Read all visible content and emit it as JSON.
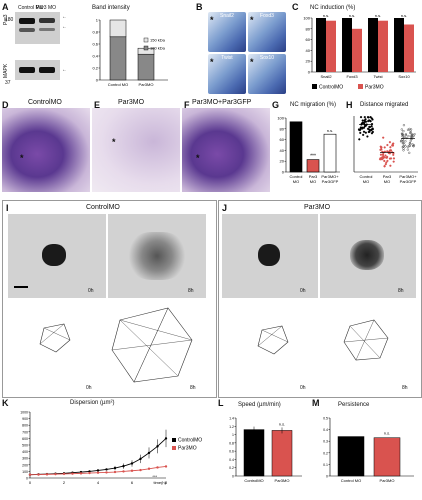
{
  "panels": {
    "A": {
      "label": "A",
      "lane_labels": [
        "Control MO",
        "Par3 MO"
      ],
      "row_labels": [
        "Par3",
        "MAPK"
      ],
      "mw_marks": [
        "180",
        "37"
      ],
      "chart_title": "Band intensity",
      "legend": [
        "150 kDa",
        "180 kDa"
      ],
      "y_ticks": [
        "0",
        "0.2",
        "0.4",
        "0.6",
        "0.8",
        "1"
      ],
      "categories": [
        "Control MO",
        "Par3MO"
      ]
    },
    "B": {
      "label": "B",
      "markers": [
        "Snail2",
        "Foxd3",
        "Twist",
        "Sox10"
      ]
    },
    "C": {
      "label": "C",
      "title": "NC induction (%)",
      "annotations": [
        "n.s.",
        "n.s.",
        "n.s.",
        "n.s."
      ],
      "categories": [
        "Snail2",
        "Foxd3",
        "Twist",
        "Sox10"
      ],
      "legend": [
        "ControlMO",
        "Par3MO"
      ],
      "y_ticks": [
        "0",
        "20",
        "40",
        "60",
        "80",
        "100"
      ]
    },
    "D": {
      "label": "D",
      "title": "ControlMO"
    },
    "E": {
      "label": "E",
      "title": "Par3MO"
    },
    "F": {
      "label": "F",
      "title": "Par3MO+Par3GFP"
    },
    "G": {
      "label": "G",
      "title": "NC migration (%)",
      "annotations": [
        "***",
        "n.s."
      ],
      "categories": [
        "Control MO",
        "Par3 MO",
        "Par3MO+ Par3GFP"
      ],
      "y_ticks": [
        "0",
        "20",
        "40",
        "60",
        "80",
        "100"
      ]
    },
    "H": {
      "label": "H",
      "title": "Distance migrated",
      "categories": [
        "Control MO",
        "Par3 MO",
        "Par3MO+ Par3GFP"
      ]
    },
    "I": {
      "label": "I",
      "title": "ControlMO",
      "times": [
        "0h",
        "8h",
        "0h",
        "8h"
      ]
    },
    "J": {
      "label": "J",
      "title": "Par3MO",
      "times": [
        "0h",
        "8h",
        "0h",
        "8h"
      ]
    },
    "K": {
      "label": "K",
      "title": "Dispersion (µm²)",
      "y_ticks": [
        "0",
        "100",
        "200",
        "300",
        "400",
        "500",
        "600",
        "700",
        "800",
        "900",
        "1000"
      ],
      "x_ticks": [
        "0",
        "2",
        "4",
        "6",
        "8"
      ],
      "x_unit": "time(h)",
      "legend": [
        "ControlMO",
        "Par3MO"
      ],
      "annotation": "***"
    },
    "L": {
      "label": "L",
      "title": "Speed (µm/min)",
      "annotation": "n.s.",
      "categories": [
        "ControlMO",
        "Par3MO"
      ],
      "y_ticks": [
        "0",
        "0.2",
        "0.4",
        "0.6",
        "0.8",
        "1",
        "1.2",
        "1.4"
      ]
    },
    "M": {
      "label": "M",
      "title": "Persistence",
      "annotation": "n.s.",
      "categories": [
        "Control MO",
        "Par3MO"
      ],
      "y_ticks": [
        "0",
        "0.1",
        "0.2",
        "0.3",
        "0.4",
        "0.5"
      ]
    }
  },
  "colors": {
    "control": "#000000",
    "par3": "#d9534f",
    "rescue": "#ffffff",
    "band_dark": "#111111",
    "band_light": "#e0e0e0"
  },
  "chart_data": [
    {
      "id": "A",
      "type": "bar",
      "stacked": true,
      "categories": [
        "Control MO",
        "Par3MO"
      ],
      "series": [
        {
          "name": "180 kDa",
          "values": [
            0.72,
            0.43
          ]
        },
        {
          "name": "150 kDa",
          "values": [
            0.28,
            0.1
          ]
        }
      ],
      "ylim": [
        0,
        1
      ]
    },
    {
      "id": "C",
      "type": "bar",
      "categories": [
        "Snail2",
        "Foxd3",
        "Twist",
        "Sox10"
      ],
      "series": [
        {
          "name": "ControlMO",
          "values": [
            100,
            100,
            100,
            100
          ]
        },
        {
          "name": "Par3MO",
          "values": [
            95,
            80,
            95,
            88
          ]
        }
      ],
      "ylim": [
        0,
        100
      ]
    },
    {
      "id": "G",
      "type": "bar",
      "categories": [
        "Control MO",
        "Par3 MO",
        "Par3MO+ Par3GFP"
      ],
      "values": [
        93,
        23,
        70
      ],
      "ylim": [
        0,
        100
      ]
    },
    {
      "id": "H",
      "type": "scatter",
      "categories": [
        "Control MO",
        "Par3 MO",
        "Par3MO+ Par3GFP"
      ],
      "means": [
        0.85,
        0.35,
        0.6
      ]
    },
    {
      "id": "K",
      "type": "line",
      "x": [
        0,
        0.5,
        1,
        1.5,
        2,
        2.5,
        3,
        3.5,
        4,
        4.5,
        5,
        5.5,
        6,
        6.5,
        7,
        7.5,
        8
      ],
      "series": [
        {
          "name": "ControlMO",
          "values": [
            50,
            55,
            60,
            65,
            70,
            80,
            90,
            100,
            115,
            130,
            150,
            180,
            220,
            290,
            380,
            480,
            600
          ]
        },
        {
          "name": "Par3MO",
          "values": [
            50,
            52,
            55,
            58,
            62,
            66,
            70,
            75,
            80,
            85,
            90,
            100,
            110,
            120,
            140,
            160,
            175
          ]
        }
      ],
      "ylim": [
        0,
        1000
      ],
      "xlim": [
        0,
        8
      ]
    },
    {
      "id": "L",
      "type": "bar",
      "categories": [
        "ControlMO",
        "Par3MO"
      ],
      "values": [
        1.12,
        1.1
      ],
      "ylim": [
        0,
        1.4
      ]
    },
    {
      "id": "M",
      "type": "bar",
      "categories": [
        "Control MO",
        "Par3MO"
      ],
      "values": [
        0.34,
        0.33
      ],
      "ylim": [
        0,
        0.5
      ]
    }
  ]
}
